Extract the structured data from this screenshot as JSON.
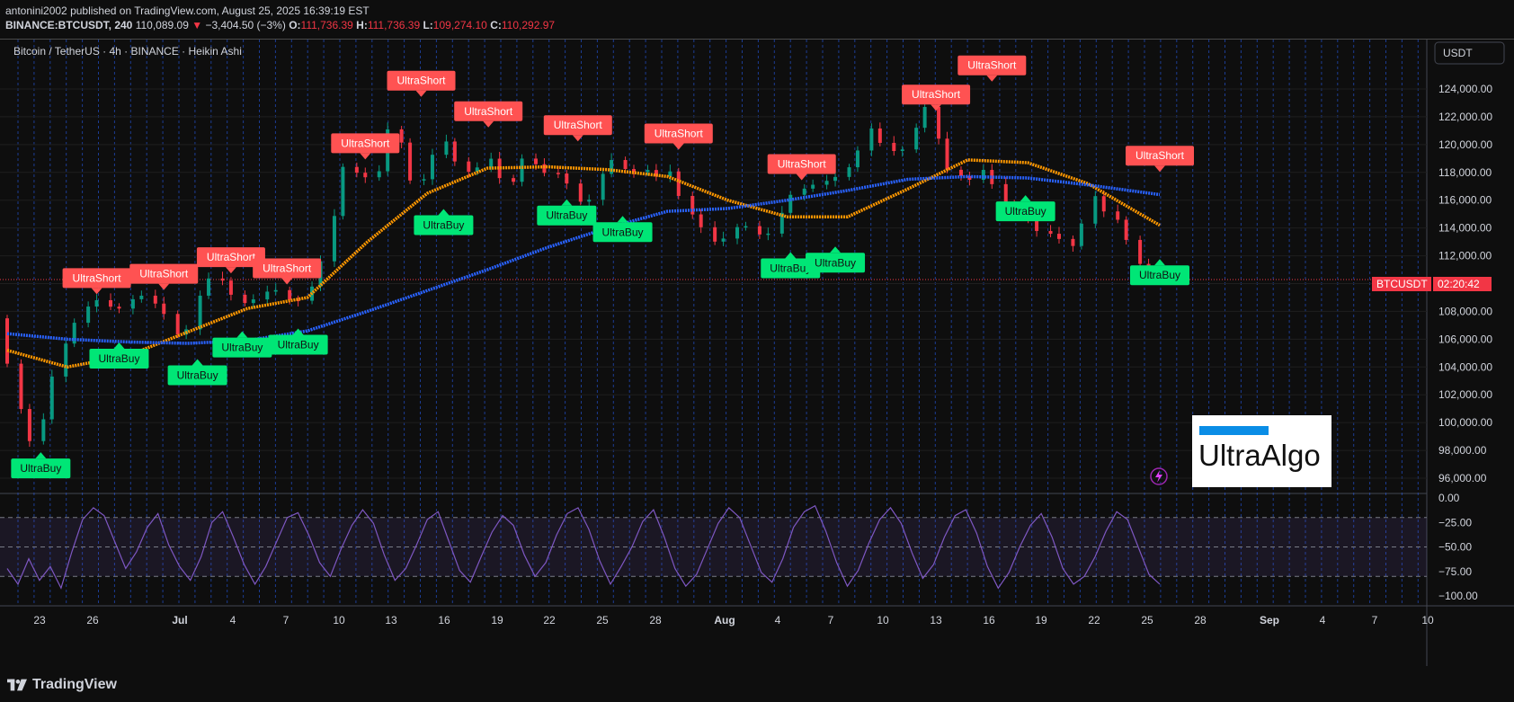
{
  "header": {
    "published": "antonini2002 published on TradingView.com, August 25, 2025 16:39:19 EST",
    "symbol_line": "BINANCE:BTCUSDT, 240",
    "last": "110,089.09",
    "change": "−3,404.50 (−3%)",
    "o_label": "O:",
    "o": "111,736.39",
    "h_label": "H:",
    "h": "111,736.39",
    "l_label": "L:",
    "l": "109,274.10",
    "c_label": "C:",
    "c": "110,292.97"
  },
  "chart_title": "Bitcoin / TetherUS · 4h · BINANCE · Heikin Ashi",
  "currency_button": "USDT",
  "price_tag": {
    "symbol": "BTCUSDT",
    "countdown": "02:20:42"
  },
  "logo_box": {
    "text": "UltraAlgo"
  },
  "footer": {
    "brand": "TradingView"
  },
  "colors": {
    "bull": "#089981",
    "bear": "#f23645",
    "fast_ma": "#ff9800",
    "slow_ma": "#2962ff",
    "signal_buy": "#00e676",
    "signal_short": "#ff5252",
    "oscillator": "#7e57c2",
    "grid": "#2962ff"
  },
  "chart_data": [
    {
      "type": "candlestick",
      "subtype": "heikin-ashi",
      "ylim": [
        96000,
        126000
      ],
      "y_ticks": [
        "96,000.00",
        "98,000.00",
        "100,000.00",
        "102,000.00",
        "104,000.00",
        "106,000.00",
        "108,000.00",
        "110,000.00",
        "112,000.00",
        "114,000.00",
        "116,000.00",
        "118,000.00",
        "120,000.00",
        "122,000.00",
        "124,000.00"
      ],
      "x_ticks": [
        "23",
        "26",
        "Jul",
        "4",
        "7",
        "10",
        "13",
        "16",
        "19",
        "22",
        "25",
        "28",
        "Aug",
        "4",
        "7",
        "10",
        "13",
        "16",
        "19",
        "22",
        "25",
        "28",
        "Sep",
        "4",
        "7",
        "10"
      ],
      "bold_x_ticks": [
        "Jul",
        "Aug",
        "Sep"
      ],
      "price_path": [
        [
          0,
          107500
        ],
        [
          1,
          104000
        ],
        [
          2,
          100500
        ],
        [
          3,
          98200
        ],
        [
          4,
          101000
        ],
        [
          5,
          104500
        ],
        [
          6,
          106500
        ],
        [
          7,
          107800
        ],
        [
          8,
          109000
        ],
        [
          9,
          108500
        ],
        [
          10,
          108000
        ],
        [
          11,
          108800
        ],
        [
          12,
          109200
        ],
        [
          13,
          108600
        ],
        [
          14,
          107800
        ],
        [
          15,
          106200
        ],
        [
          16,
          106800
        ],
        [
          17,
          109800
        ],
        [
          18,
          110600
        ],
        [
          19,
          110000
        ],
        [
          20,
          108600
        ],
        [
          21,
          108600
        ],
        [
          22,
          109200
        ],
        [
          23,
          109800
        ],
        [
          24,
          108900
        ],
        [
          25,
          108600
        ],
        [
          26,
          109600
        ],
        [
          27,
          111500
        ],
        [
          28,
          115000
        ],
        [
          29,
          118800
        ],
        [
          30,
          117800
        ],
        [
          31,
          117600
        ],
        [
          32,
          118300
        ],
        [
          33,
          122800
        ],
        [
          34,
          118000
        ],
        [
          35,
          116800
        ],
        [
          36,
          118500
        ],
        [
          37,
          120700
        ],
        [
          38,
          119000
        ],
        [
          39,
          118000
        ],
        [
          40,
          118300
        ],
        [
          41,
          119000
        ],
        [
          42,
          117500
        ],
        [
          43,
          117300
        ],
        [
          44,
          119400
        ],
        [
          45,
          118300
        ],
        [
          46,
          117800
        ],
        [
          47,
          118000
        ],
        [
          48,
          116500
        ],
        [
          49,
          115200
        ],
        [
          50,
          117300
        ],
        [
          51,
          119100
        ],
        [
          52,
          118300
        ],
        [
          53,
          118000
        ],
        [
          54,
          118200
        ],
        [
          55,
          117700
        ],
        [
          56,
          118100
        ],
        [
          57,
          116000
        ],
        [
          58,
          114700
        ],
        [
          59,
          113800
        ],
        [
          60,
          112600
        ],
        [
          61,
          113700
        ],
        [
          62,
          114400
        ],
        [
          63,
          113800
        ],
        [
          64,
          113100
        ],
        [
          65,
          114700
        ],
        [
          66,
          116300
        ],
        [
          67,
          116800
        ],
        [
          68,
          117100
        ],
        [
          69,
          117400
        ],
        [
          70,
          117700
        ],
        [
          71,
          118500
        ],
        [
          72,
          119900
        ],
        [
          73,
          121700
        ],
        [
          74,
          119200
        ],
        [
          75,
          119800
        ],
        [
          76,
          119500
        ],
        [
          77,
          123500
        ],
        [
          78,
          121300
        ],
        [
          79,
          118300
        ],
        [
          80,
          117800
        ],
        [
          81,
          117400
        ],
        [
          82,
          118200
        ],
        [
          83,
          117100
        ],
        [
          84,
          115600
        ],
        [
          85,
          114900
        ],
        [
          86,
          114600
        ],
        [
          87,
          113400
        ],
        [
          88,
          113700
        ],
        [
          89,
          112800
        ],
        [
          90,
          112600
        ],
        [
          91,
          116800
        ],
        [
          92,
          115300
        ],
        [
          93,
          114900
        ],
        [
          94,
          113400
        ],
        [
          95,
          111500
        ],
        [
          96,
          110300
        ]
      ],
      "series": [
        {
          "name": "",
          "color": "#ff9800",
          "values": [
            [
              0,
              105200
            ],
            [
              5,
              104000
            ],
            [
              10,
              104800
            ],
            [
              15,
              106500
            ],
            [
              20,
              108200
            ],
            [
              25,
              109000
            ],
            [
              30,
              113000
            ],
            [
              35,
              116500
            ],
            [
              40,
              118300
            ],
            [
              45,
              118400
            ],
            [
              50,
              118200
            ],
            [
              55,
              117700
            ],
            [
              60,
              116000
            ],
            [
              65,
              114800
            ],
            [
              70,
              114800
            ],
            [
              75,
              116800
            ],
            [
              80,
              118900
            ],
            [
              85,
              118700
            ],
            [
              90,
              117200
            ],
            [
              96,
              114200
            ]
          ]
        },
        {
          "name": "",
          "color": "#2962ff",
          "values": [
            [
              0,
              106400
            ],
            [
              5,
              106000
            ],
            [
              10,
              105800
            ],
            [
              15,
              105700
            ],
            [
              20,
              105900
            ],
            [
              25,
              106600
            ],
            [
              30,
              108000
            ],
            [
              35,
              109500
            ],
            [
              40,
              111000
            ],
            [
              45,
              112600
            ],
            [
              50,
              114000
            ],
            [
              55,
              115200
            ],
            [
              60,
              115400
            ],
            [
              65,
              116000
            ],
            [
              70,
              116700
            ],
            [
              75,
              117500
            ],
            [
              80,
              117700
            ],
            [
              85,
              117600
            ],
            [
              90,
              117100
            ],
            [
              96,
              116400
            ]
          ]
        }
      ],
      "signals": [
        {
          "label": "UltraBuy",
          "type": "buy",
          "x": 3,
          "y": 97800
        },
        {
          "label": "UltraShort",
          "type": "short",
          "x": 8,
          "y": 109300
        },
        {
          "label": "UltraBuy",
          "type": "buy",
          "x": 10,
          "y": 105700
        },
        {
          "label": "UltraShort",
          "type": "short",
          "x": 14,
          "y": 109600
        },
        {
          "label": "UltraBuy",
          "type": "buy",
          "x": 17,
          "y": 104500
        },
        {
          "label": "UltraShort",
          "type": "short",
          "x": 20,
          "y": 110800
        },
        {
          "label": "UltraBuy",
          "type": "buy",
          "x": 21,
          "y": 106500
        },
        {
          "label": "UltraShort",
          "type": "short",
          "x": 25,
          "y": 110000
        },
        {
          "label": "UltraBuy",
          "type": "buy",
          "x": 26,
          "y": 106700
        },
        {
          "label": "UltraShort",
          "type": "short",
          "x": 32,
          "y": 119000
        },
        {
          "label": "UltraShort",
          "type": "short",
          "x": 37,
          "y": 123500
        },
        {
          "label": "UltraBuy",
          "type": "buy",
          "x": 39,
          "y": 115300
        },
        {
          "label": "UltraShort",
          "type": "short",
          "x": 43,
          "y": 121300
        },
        {
          "label": "UltraBuy",
          "type": "buy",
          "x": 50,
          "y": 116000
        },
        {
          "label": "UltraShort",
          "type": "short",
          "x": 51,
          "y": 120300
        },
        {
          "label": "UltraBuy",
          "type": "buy",
          "x": 55,
          "y": 114800
        },
        {
          "label": "UltraShort",
          "type": "short",
          "x": 60,
          "y": 119700
        },
        {
          "label": "UltraShort",
          "type": "short",
          "x": 71,
          "y": 117500
        },
        {
          "label": "UltraBuy",
          "type": "buy",
          "x": 70,
          "y": 112200
        },
        {
          "label": "UltraBuy",
          "type": "buy",
          "x": 74,
          "y": 112600
        },
        {
          "label": "UltraShort",
          "type": "short",
          "x": 83,
          "y": 122500
        },
        {
          "label": "UltraShort",
          "type": "short",
          "x": 88,
          "y": 124600
        },
        {
          "label": "UltraBuy",
          "type": "buy",
          "x": 91,
          "y": 116300
        },
        {
          "label": "UltraShort",
          "type": "short",
          "x": 103,
          "y": 118100
        },
        {
          "label": "UltraBuy",
          "type": "buy",
          "x": 103,
          "y": 111700
        }
      ],
      "last_price": "110,292.97"
    },
    {
      "type": "line",
      "ylim": [
        -100,
        0
      ],
      "y_ticks": [
        "0.00",
        "−25.00",
        "−50.00",
        "−75.00",
        "−100.00"
      ],
      "band": [
        -80,
        -20
      ],
      "dashed_levels": [
        -20,
        -50,
        -80
      ],
      "series": [
        {
          "name": "",
          "color": "#7e57c2",
          "values": [
            -72,
            -88,
            -62,
            -84,
            -70,
            -92,
            -55,
            -22,
            -10,
            -18,
            -45,
            -72,
            -55,
            -30,
            -16,
            -48,
            -70,
            -84,
            -60,
            -25,
            -14,
            -40,
            -68,
            -88,
            -70,
            -45,
            -20,
            -15,
            -38,
            -66,
            -80,
            -52,
            -28,
            -12,
            -26,
            -58,
            -84,
            -72,
            -48,
            -22,
            -14,
            -44,
            -74,
            -86,
            -60,
            -35,
            -18,
            -28,
            -58,
            -80,
            -66,
            -38,
            -16,
            -10,
            -32,
            -64,
            -88,
            -70,
            -50,
            -24,
            -12,
            -40,
            -72,
            -90,
            -78,
            -52,
            -26,
            -10,
            -20,
            -48,
            -76,
            -86,
            -62,
            -30,
            -14,
            -8,
            -34,
            -66,
            -90,
            -74,
            -46,
            -22,
            -10,
            -26,
            -56,
            -82,
            -68,
            -40,
            -18,
            -12,
            -36,
            -70,
            -92,
            -76,
            -50,
            -28,
            -16,
            -40,
            -72,
            -88,
            -80,
            -60,
            -34,
            -14,
            -22,
            -50,
            -78,
            -88
          ]
        }
      ]
    }
  ]
}
